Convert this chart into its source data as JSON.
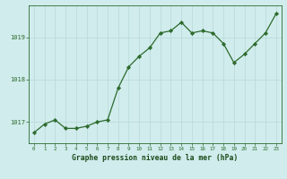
{
  "x": [
    0,
    1,
    2,
    3,
    4,
    5,
    6,
    7,
    8,
    9,
    10,
    11,
    12,
    13,
    14,
    15,
    16,
    17,
    18,
    19,
    20,
    21,
    22,
    23
  ],
  "y": [
    1016.75,
    1016.95,
    1017.05,
    1016.85,
    1016.85,
    1016.9,
    1017.0,
    1017.05,
    1017.8,
    1018.3,
    1018.55,
    1018.75,
    1019.1,
    1019.15,
    1019.35,
    1019.1,
    1019.15,
    1019.1,
    1018.85,
    1018.4,
    1018.6,
    1018.85,
    1019.1,
    1019.55
  ],
  "line_color": "#2d6a2d",
  "marker_color": "#2d6a2d",
  "bg_color": "#d0ecec",
  "grid_color": "#b8d8d8",
  "xlabel": "Graphe pression niveau de la mer (hPa)",
  "xlabel_color": "#1a4a1a",
  "tick_color": "#2d6a2d",
  "ylim_min": 1016.5,
  "ylim_max": 1019.75,
  "yticks": [
    1017,
    1018,
    1019
  ],
  "xticks": [
    0,
    1,
    2,
    3,
    4,
    5,
    6,
    7,
    8,
    9,
    10,
    11,
    12,
    13,
    14,
    15,
    16,
    17,
    18,
    19,
    20,
    21,
    22,
    23
  ]
}
